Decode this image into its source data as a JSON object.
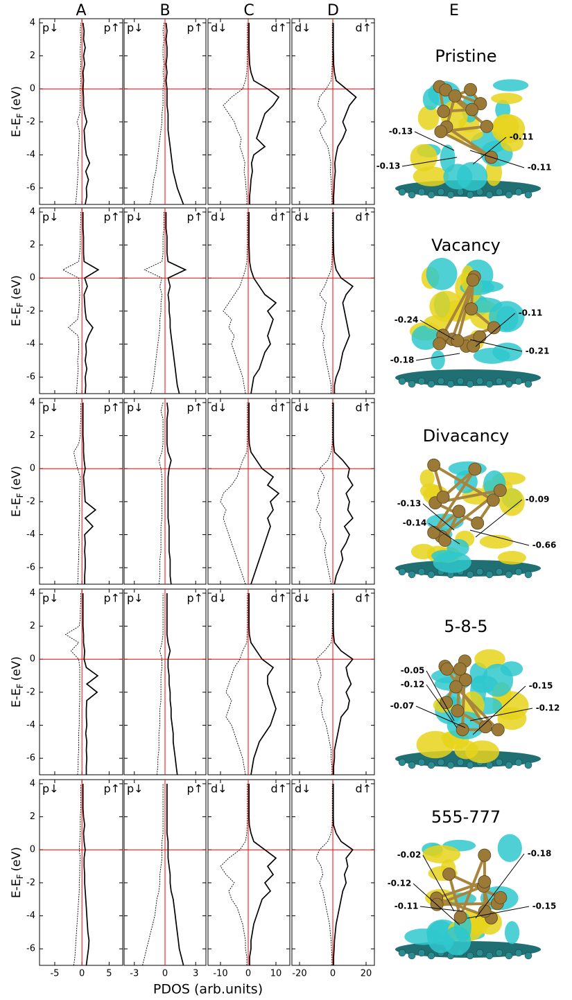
{
  "columns": [
    {
      "label": "A",
      "spin_down_label": "p↓",
      "spin_up_label": "p↑",
      "xlim": [
        -7.8,
        7.5
      ],
      "xticks": [
        -5,
        0,
        5
      ]
    },
    {
      "label": "B",
      "spin_down_label": "p↓",
      "spin_up_label": "p↑",
      "xlim": [
        -4,
        4
      ],
      "xticks": [
        -3,
        0,
        3
      ]
    },
    {
      "label": "C",
      "spin_down_label": "d↓",
      "spin_up_label": "d↑",
      "xlim": [
        -14.5,
        15
      ],
      "xticks": [
        -10,
        0,
        10
      ]
    },
    {
      "label": "D",
      "spin_down_label": "d↓",
      "spin_up_label": "d↑",
      "xlim": [
        -24.6,
        25
      ],
      "xticks": [
        -20,
        0,
        20
      ]
    }
  ],
  "structure_column_label": "E",
  "y_axis": {
    "label_main": "E-E",
    "label_sub": "F",
    "label_unit": "(eV)",
    "ylim": [
      -7,
      4.25
    ],
    "yticks": [
      -6,
      -4,
      -2,
      0,
      2,
      4
    ]
  },
  "x_axis_label": "PDOS (arb.units)",
  "reference_line_color": "#ff0000",
  "fermi_level": 0,
  "energy": [
    -7,
    -6.5,
    -6,
    -5.5,
    -5,
    -4.5,
    -4,
    -3.5,
    -3,
    -2.5,
    -2,
    -1.5,
    -1,
    -0.5,
    0,
    0.5,
    1,
    1.5,
    2,
    2.5,
    3,
    3.5,
    4
  ],
  "rows": [
    {
      "name": "Pristine",
      "charges": [
        "-0.13",
        "-0.13",
        "-0.11",
        "-0.11"
      ],
      "panels": [
        {
          "down": [
            -1.2,
            -1.0,
            -0.9,
            -0.8,
            -0.7,
            -0.8,
            -0.6,
            -0.6,
            -0.5,
            -0.5,
            -0.9,
            -0.4,
            -0.3,
            -0.3,
            -0.3,
            -0.2,
            -0.3,
            -0.2,
            -0.3,
            -0.3,
            -0.2,
            -0.3,
            -0.2
          ],
          "up": [
            0.6,
            0.9,
            0.8,
            1.2,
            0.7,
            1.4,
            0.8,
            0.6,
            0.5,
            0.4,
            0.9,
            0.5,
            0.3,
            0.3,
            0.2,
            0.3,
            0.2,
            0.5,
            0.3,
            0.6,
            0.3,
            0.4,
            0.2
          ]
        },
        {
          "down": [
            -1.5,
            -1.3,
            -1.2,
            -1.1,
            -0.9,
            -0.8,
            -0.7,
            -0.6,
            -0.5,
            -0.4,
            -0.3,
            -0.3,
            -0.2,
            -0.2,
            -0.2,
            -0.1,
            -0.2,
            -0.1,
            -0.2,
            -0.2,
            -0.1,
            -0.2,
            -0.1
          ],
          "up": [
            1.8,
            1.5,
            1.2,
            1.0,
            0.8,
            0.7,
            0.6,
            0.5,
            0.4,
            0.3,
            0.3,
            0.3,
            0.2,
            0.2,
            0.2,
            0.1,
            0.2,
            0.1,
            0.2,
            0.2,
            0.1,
            0.2,
            0.1
          ]
        },
        {
          "down": [
            -0.5,
            -0.5,
            -0.8,
            -1,
            -1.5,
            -1.2,
            -2,
            -3,
            -2.5,
            -4,
            -5,
            -7,
            -9,
            -6,
            -2,
            -1,
            -0.5,
            -0.4,
            -0.3,
            -0.3,
            -0.3,
            -0.3,
            -0.3
          ],
          "up": [
            0.5,
            0.5,
            0.8,
            1,
            1.5,
            1.2,
            2,
            6,
            3,
            4,
            5,
            6,
            9,
            11,
            7,
            2,
            1,
            0.5,
            0.4,
            0.3,
            0.3,
            0.3,
            0.3
          ]
        },
        {
          "down": [
            -0.5,
            -0.5,
            -0.8,
            -1,
            -1.5,
            -1.2,
            -2,
            -3,
            -6,
            -8,
            -4,
            -6,
            -9,
            -8,
            -4,
            -1,
            -0.5,
            -0.4,
            -0.3,
            -0.3,
            -0.3,
            -0.3,
            -0.3
          ],
          "up": [
            0.5,
            0.5,
            0.8,
            1,
            1.5,
            1.2,
            2,
            3,
            6,
            8,
            6,
            8,
            10,
            14,
            8,
            2,
            1,
            0.5,
            0.4,
            0.3,
            0.3,
            0.3,
            0.3
          ]
        }
      ]
    },
    {
      "name": "Vacancy",
      "charges": [
        "-0.24",
        "-0.11",
        "-0.18",
        "-0.21"
      ],
      "panels": [
        {
          "down": [
            -1,
            -0.9,
            -0.8,
            -0.7,
            -0.8,
            -0.6,
            -0.6,
            -0.7,
            -2.5,
            -0.8,
            -0.6,
            -0.5,
            -0.4,
            -0.5,
            -0.6,
            -3.5,
            -0.6,
            -0.4,
            -0.3,
            -0.3,
            -0.3,
            -0.2,
            -0.2
          ],
          "up": [
            0.6,
            0.7,
            0.6,
            0.9,
            0.6,
            0.8,
            0.7,
            1.2,
            2.0,
            0.8,
            0.6,
            0.5,
            0.4,
            1.0,
            0.5,
            3.0,
            0.4,
            0.3,
            0.3,
            0.3,
            0.2,
            0.2,
            0.2
          ]
        },
        {
          "down": [
            -1.4,
            -1.2,
            -1.1,
            -1,
            -0.9,
            -0.8,
            -0.7,
            -0.6,
            -0.5,
            -0.5,
            -0.4,
            -0.4,
            -0.3,
            -0.5,
            -0.3,
            -2.0,
            -0.3,
            -0.2,
            -0.2,
            -0.2,
            -0.1,
            -0.1,
            -0.1
          ],
          "up": [
            1.4,
            1.2,
            1.1,
            1,
            0.9,
            0.8,
            0.7,
            0.6,
            0.5,
            0.5,
            0.4,
            0.4,
            0.3,
            0.5,
            0.3,
            2.0,
            0.3,
            0.2,
            0.2,
            0.2,
            0.1,
            0.1,
            0.1
          ]
        },
        {
          "down": [
            -1,
            -1.5,
            -2,
            -3,
            -4,
            -5,
            -6,
            -5,
            -7,
            -6,
            -9,
            -7,
            -5,
            -3,
            -2,
            -1,
            -0.5,
            -0.4,
            -0.3,
            -0.3,
            -0.3,
            -0.3,
            -0.3
          ],
          "up": [
            1,
            1.5,
            2,
            4,
            5,
            6,
            8,
            7,
            8,
            9,
            7,
            10,
            6,
            4,
            2,
            1,
            0.5,
            0.4,
            0.3,
            0.3,
            0.3,
            0.3,
            0.3
          ]
        },
        {
          "down": [
            -1,
            -1,
            -2,
            -3,
            -4,
            -5,
            -6,
            -5,
            -7,
            -6,
            -5,
            -4,
            -8,
            -5,
            -3,
            -1,
            -0.5,
            -0.4,
            -0.3,
            -0.3,
            -0.3,
            -0.3,
            -0.3
          ],
          "up": [
            1,
            1,
            2,
            4,
            5,
            6,
            8,
            10,
            9,
            8,
            7,
            6,
            8,
            12,
            5,
            2,
            1,
            0.5,
            0.4,
            0.3,
            0.3,
            0.3,
            0.3
          ]
        }
      ]
    },
    {
      "name": "Divacancy",
      "charges": [
        "-0.13",
        "-0.09",
        "-0.14",
        "-0.66"
      ],
      "panels": [
        {
          "down": [
            -0.8,
            -0.7,
            -0.7,
            -0.6,
            -0.6,
            -0.5,
            -0.6,
            -0.5,
            -0.5,
            -0.4,
            -0.5,
            -0.4,
            -0.4,
            -0.3,
            -0.8,
            -1.2,
            -1.5,
            -0.6,
            -0.3,
            -0.3,
            -0.2,
            -0.2,
            -0.2
          ],
          "up": [
            0.5,
            0.5,
            0.6,
            0.6,
            0.5,
            0.6,
            0.5,
            2.0,
            0.6,
            2.5,
            0.6,
            0.5,
            0.4,
            0.3,
            0.6,
            0.4,
            0.3,
            0.3,
            0.2,
            0.2,
            0.2,
            0.2,
            0.2
          ]
        },
        {
          "down": [
            -0.6,
            -0.5,
            -0.5,
            -0.5,
            -0.4,
            -0.4,
            -0.4,
            -0.4,
            -0.3,
            -0.3,
            -0.3,
            -0.3,
            -0.3,
            -0.3,
            -0.4,
            -0.6,
            -0.3,
            -0.2,
            -0.2,
            -0.2,
            -0.2,
            -0.4,
            -0.2
          ],
          "up": [
            0.6,
            0.5,
            0.5,
            0.5,
            0.4,
            0.4,
            0.4,
            0.4,
            0.3,
            0.3,
            0.3,
            0.3,
            0.3,
            0.3,
            0.4,
            0.6,
            0.3,
            0.2,
            0.2,
            0.2,
            0.2,
            0.3,
            0.2
          ]
        },
        {
          "down": [
            -1,
            -2,
            -3,
            -4,
            -5,
            -6,
            -7,
            -8,
            -9,
            -8,
            -10,
            -9,
            -6,
            -4,
            -3,
            -2,
            -0.5,
            -0.4,
            -0.3,
            -0.3,
            -0.3,
            -0.3,
            -0.3
          ],
          "up": [
            1,
            2,
            3,
            4,
            5,
            6,
            7,
            8,
            7,
            9,
            8,
            11,
            7,
            9,
            5,
            3,
            1,
            0.4,
            0.3,
            0.3,
            0.3,
            0.3,
            0.3
          ]
        },
        {
          "down": [
            -1,
            -2,
            -3,
            -4,
            -5,
            -4,
            -6,
            -8,
            -7,
            -10,
            -8,
            -9,
            -7,
            -5,
            -8,
            -3,
            -1,
            -0.4,
            -0.3,
            -0.3,
            -0.3,
            -0.3,
            -0.3
          ],
          "up": [
            1,
            2,
            4,
            6,
            5,
            8,
            10,
            7,
            12,
            9,
            10,
            8,
            12,
            9,
            10,
            6,
            1,
            0.4,
            0.3,
            0.3,
            0.3,
            0.3,
            0.3
          ]
        }
      ]
    },
    {
      "name": "5-8-5",
      "charges": [
        "-0.05",
        "-0.12",
        "-0.15",
        "-0.12",
        "-0.07"
      ],
      "panels": [
        {
          "down": [
            -0.8,
            -0.7,
            -0.7,
            -0.6,
            -0.6,
            -0.6,
            -0.5,
            -0.5,
            -0.5,
            -0.4,
            -0.4,
            -0.4,
            -0.4,
            -0.4,
            -0.6,
            -2.0,
            -0.6,
            -3.0,
            -0.5,
            -0.3,
            -0.3,
            -0.2,
            -0.2
          ],
          "up": [
            0.8,
            0.8,
            0.9,
            0.8,
            0.9,
            0.7,
            0.9,
            0.8,
            0.8,
            0.9,
            2.8,
            0.9,
            2.9,
            0.8,
            0.4,
            0.5,
            0.3,
            0.3,
            0.2,
            0.2,
            0.2,
            0.2,
            0.2
          ]
        },
        {
          "down": [
            -0.8,
            -0.7,
            -0.7,
            -0.6,
            -0.6,
            -0.6,
            -0.5,
            -0.5,
            -0.5,
            -0.4,
            -0.4,
            -0.4,
            -0.4,
            -0.3,
            -0.3,
            -0.5,
            -0.3,
            -0.2,
            -0.2,
            -0.2,
            -0.2,
            -0.2,
            -0.2
          ],
          "up": [
            1.2,
            1.1,
            1,
            0.9,
            0.8,
            0.8,
            0.7,
            0.6,
            0.6,
            0.5,
            0.5,
            0.4,
            0.4,
            0.3,
            0.3,
            0.5,
            0.3,
            0.2,
            0.2,
            0.2,
            0.2,
            0.2,
            0.2
          ]
        },
        {
          "down": [
            -1,
            -1.5,
            -2,
            -3,
            -4,
            -5,
            -6,
            -8,
            -7,
            -6,
            -8,
            -7,
            -6,
            -5,
            -3,
            -2,
            -0.5,
            -0.4,
            -0.3,
            -0.3,
            -0.3,
            -0.3,
            -0.3
          ],
          "up": [
            1,
            1.5,
            2,
            3,
            4,
            6,
            8,
            9,
            10,
            9,
            8,
            7,
            7,
            9,
            5,
            3,
            1,
            0.4,
            0.3,
            0.3,
            0.3,
            0.3,
            0.3
          ]
        },
        {
          "down": [
            -0.5,
            -0.5,
            -1,
            -1,
            -2,
            -3,
            -4,
            -6,
            -7,
            -6,
            -8,
            -9,
            -7,
            -8,
            -10,
            -5,
            -1,
            -0.4,
            -0.3,
            -0.3,
            -0.3,
            -0.3,
            -0.3
          ],
          "up": [
            0.5,
            0.5,
            1,
            1,
            2,
            3,
            4,
            5,
            9,
            10,
            8,
            11,
            9,
            8,
            12,
            5,
            1,
            0.4,
            0.3,
            0.3,
            0.3,
            0.3,
            0.3
          ]
        }
      ]
    },
    {
      "name": "555-777",
      "charges": [
        "-0.02",
        "-0.18",
        "-0.12",
        "-0.11",
        "-0.15"
      ],
      "panels": [
        {
          "down": [
            -1.5,
            -1.3,
            -1.2,
            -1.1,
            -1,
            -0.9,
            -0.8,
            -0.7,
            -0.6,
            -0.5,
            -0.5,
            -0.4,
            -0.4,
            -0.3,
            -0.5,
            -0.4,
            -0.3,
            -0.3,
            -0.3,
            -0.2,
            -0.2,
            -0.2,
            -0.2
          ],
          "up": [
            0.8,
            1.0,
            1.2,
            1.3,
            1.1,
            1.0,
            0.9,
            0.8,
            0.7,
            0.6,
            0.5,
            0.5,
            0.4,
            0.4,
            0.6,
            0.4,
            0.3,
            0.5,
            0.3,
            0.2,
            0.2,
            0.2,
            0.2
          ]
        },
        {
          "down": [
            -2.2,
            -2.0,
            -1.8,
            -1.6,
            -1.4,
            -1.2,
            -1,
            -0.9,
            -0.8,
            -0.6,
            -0.5,
            -0.5,
            -0.4,
            -0.3,
            -0.3,
            -0.3,
            -0.2,
            -0.2,
            -0.2,
            -0.2,
            -0.2,
            -0.2,
            -0.2
          ],
          "up": [
            1.8,
            1.6,
            1.4,
            1.3,
            1.2,
            1.1,
            1,
            0.9,
            0.8,
            0.6,
            0.5,
            0.5,
            0.4,
            0.3,
            0.3,
            0.3,
            0.2,
            0.2,
            0.2,
            0.2,
            0.2,
            0.2,
            0.2
          ]
        },
        {
          "down": [
            -0.5,
            -0.5,
            -1,
            -1,
            -1.5,
            -2,
            -3,
            -4,
            -6,
            -7,
            -5,
            -8,
            -10,
            -7,
            -3,
            -1,
            -0.5,
            -0.4,
            -0.3,
            -0.3,
            -0.3,
            -0.3,
            -0.3
          ],
          "up": [
            0.5,
            0.5,
            1,
            1,
            1.5,
            2,
            3,
            4,
            5,
            8,
            6,
            9,
            7,
            10,
            6,
            2,
            1,
            0.4,
            0.3,
            0.3,
            0.3,
            0.3,
            0.3
          ]
        },
        {
          "down": [
            -0.5,
            -0.5,
            -0.8,
            -1,
            -1.5,
            -2,
            -3,
            -4,
            -5,
            -6,
            -8,
            -6,
            -7,
            -10,
            -8,
            -3,
            -1,
            -0.4,
            -0.3,
            -0.3,
            -0.3,
            -0.3,
            -0.3
          ],
          "up": [
            0.5,
            0.5,
            0.8,
            1,
            1.5,
            2,
            3,
            4,
            5,
            6,
            8,
            7,
            9,
            8,
            12,
            5,
            2,
            0.4,
            0.3,
            0.3,
            0.3,
            0.3,
            0.3
          ]
        }
      ]
    }
  ]
}
